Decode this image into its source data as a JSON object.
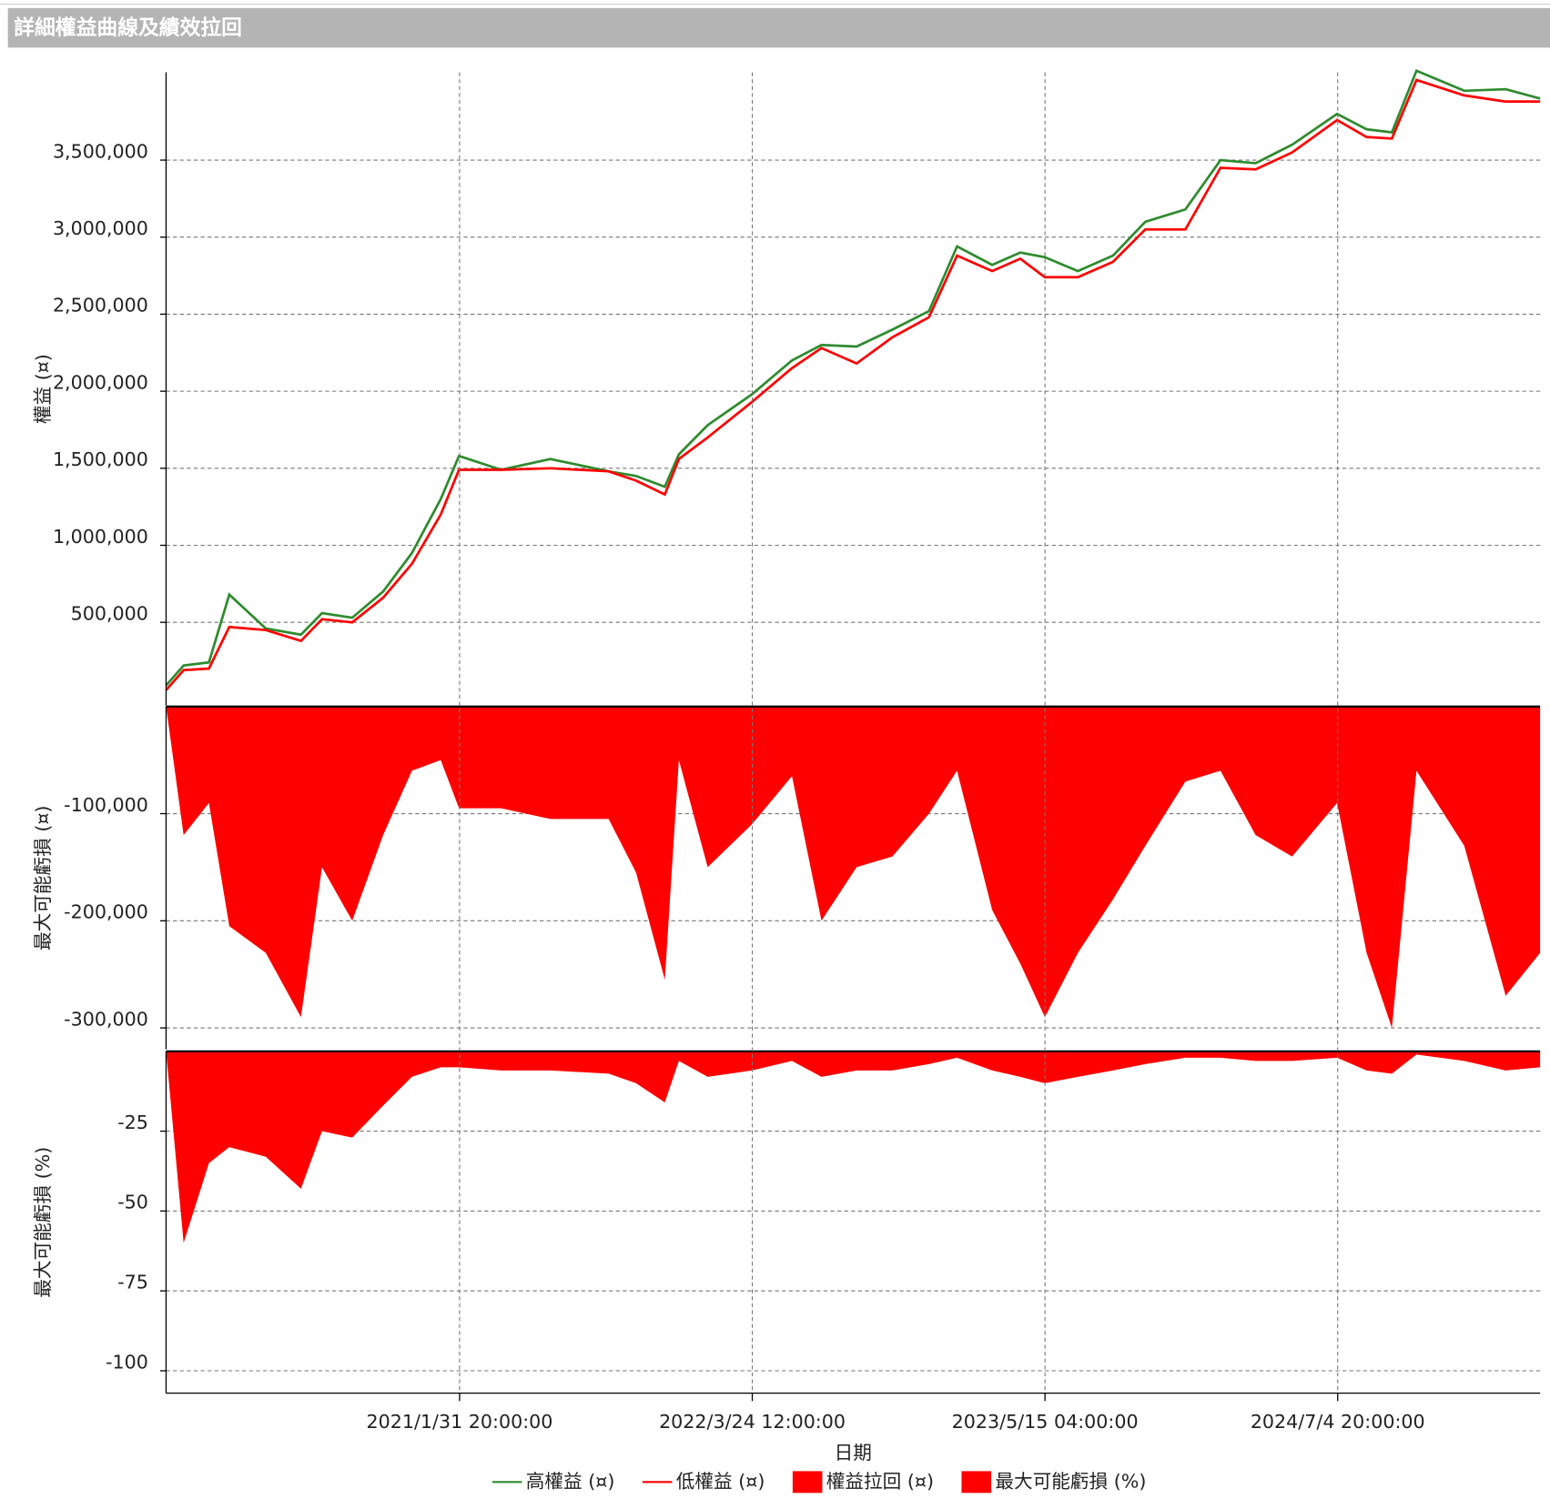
{
  "header": {
    "title": "詳細權益曲線及績效拉回"
  },
  "chart_data": [
    {
      "type": "line",
      "ylabel": "權益 (¤)",
      "xlim": [
        "2019/12/11",
        "2025/4/19"
      ],
      "x": [
        "2019/12/11",
        "2020/1/5",
        "2020/2/10",
        "2020/3/10",
        "2020/5/1",
        "2020/6/20",
        "2020/7/20",
        "2020/9/1",
        "2020/10/15",
        "2020/11/25",
        "2021/1/5",
        "2021/1/31",
        "2021/4/1",
        "2021/6/10",
        "2021/9/1",
        "2021/10/10",
        "2021/11/20",
        "2021/12/10",
        "2022/1/20",
        "2022/3/24",
        "2022/5/20",
        "2022/7/1",
        "2022/8/20",
        "2022/10/10",
        "2022/12/1",
        "2023/1/10",
        "2023/3/1",
        "2023/4/10",
        "2023/5/15",
        "2023/7/1",
        "2023/8/20",
        "2023/10/5",
        "2023/12/1",
        "2024/1/20",
        "2024/3/10",
        "2024/5/1",
        "2024/7/4",
        "2024/8/15",
        "2024/9/20",
        "2024/10/25",
        "2025/1/1",
        "2025/3/1",
        "2025/4/19"
      ],
      "series": [
        {
          "name": "高權益 (¤)",
          "color": "#2e8b2e",
          "values": [
            90000,
            220000,
            240000,
            680000,
            460000,
            420000,
            560000,
            530000,
            700000,
            950000,
            1300000,
            1580000,
            1490000,
            1560000,
            1480000,
            1450000,
            1380000,
            1590000,
            1780000,
            1980000,
            2200000,
            2300000,
            2290000,
            2400000,
            2520000,
            2940000,
            2820000,
            2900000,
            2870000,
            2780000,
            2880000,
            3100000,
            3180000,
            3500000,
            3480000,
            3600000,
            3800000,
            3700000,
            3680000,
            4080000,
            3950000,
            3960000,
            3900000
          ]
        },
        {
          "name": "低權益 (¤)",
          "color": "#ff0000",
          "values": [
            60000,
            190000,
            200000,
            470000,
            450000,
            380000,
            520000,
            500000,
            660000,
            880000,
            1200000,
            1490000,
            1490000,
            1500000,
            1480000,
            1420000,
            1330000,
            1560000,
            1700000,
            1930000,
            2150000,
            2280000,
            2180000,
            2350000,
            2480000,
            2880000,
            2780000,
            2860000,
            2740000,
            2740000,
            2840000,
            3050000,
            3050000,
            3450000,
            3440000,
            3550000,
            3760000,
            3650000,
            3640000,
            4020000,
            3920000,
            3880000,
            3880000
          ]
        }
      ],
      "ylim": [
        -40000,
        4070000
      ],
      "yticks": [
        {
          "value": 500000,
          "label": "500,000"
        },
        {
          "value": 1000000,
          "label": "1,000,000"
        },
        {
          "value": 1500000,
          "label": "1,500,000"
        },
        {
          "value": 2000000,
          "label": "2,000,000"
        },
        {
          "value": 2500000,
          "label": "2,500,000"
        },
        {
          "value": 3000000,
          "label": "3,000,000"
        },
        {
          "value": 3500000,
          "label": "3,500,000"
        }
      ],
      "grid": true
    },
    {
      "type": "area",
      "ylabel": "最大可能虧損 (¤)",
      "xlim": [
        "2019/12/11",
        "2025/4/19"
      ],
      "x": [
        "2019/12/11",
        "2020/1/5",
        "2020/2/10",
        "2020/3/10",
        "2020/5/1",
        "2020/6/20",
        "2020/7/20",
        "2020/9/1",
        "2020/10/15",
        "2020/11/25",
        "2021/1/5",
        "2021/1/31",
        "2021/4/1",
        "2021/6/10",
        "2021/9/1",
        "2021/10/10",
        "2021/11/20",
        "2021/12/10",
        "2022/1/20",
        "2022/3/24",
        "2022/5/20",
        "2022/7/1",
        "2022/8/20",
        "2022/10/10",
        "2022/12/1",
        "2023/1/10",
        "2023/3/1",
        "2023/4/10",
        "2023/5/15",
        "2023/7/1",
        "2023/8/20",
        "2023/10/5",
        "2023/12/1",
        "2024/1/20",
        "2024/3/10",
        "2024/5/1",
        "2024/7/4",
        "2024/8/15",
        "2024/9/20",
        "2024/10/25",
        "2025/1/1",
        "2025/3/1",
        "2025/4/19"
      ],
      "series": [
        {
          "name": "權益拉回 (¤)",
          "color": "#ff0000",
          "values": [
            0,
            -120000,
            -90000,
            -205000,
            -230000,
            -290000,
            -150000,
            -200000,
            -120000,
            -60000,
            -50000,
            -95000,
            -95000,
            -105000,
            -105000,
            -155000,
            -255000,
            -50000,
            -150000,
            -110000,
            -65000,
            -200000,
            -150000,
            -140000,
            -100000,
            -60000,
            -190000,
            -240000,
            -290000,
            -230000,
            -180000,
            -130000,
            -70000,
            -60000,
            -120000,
            -140000,
            -90000,
            -230000,
            -300000,
            -60000,
            -130000,
            -270000,
            -230000
          ]
        }
      ],
      "ylim": [
        -320000,
        0
      ],
      "yticks": [
        {
          "value": -300000,
          "label": "-300,000"
        },
        {
          "value": -200000,
          "label": "-200,000"
        },
        {
          "value": -100000,
          "label": "-100,000"
        }
      ],
      "grid": true
    },
    {
      "type": "area",
      "ylabel": "最大可能虧損 (%)",
      "xlabel": "日期",
      "xlim": [
        "2019/12/11",
        "2025/4/19"
      ],
      "x": [
        "2019/12/11",
        "2020/1/5",
        "2020/2/10",
        "2020/3/10",
        "2020/5/1",
        "2020/6/20",
        "2020/7/20",
        "2020/9/1",
        "2020/10/15",
        "2020/11/25",
        "2021/1/5",
        "2021/1/31",
        "2021/4/1",
        "2021/6/10",
        "2021/9/1",
        "2021/10/10",
        "2021/11/20",
        "2021/12/10",
        "2022/1/20",
        "2022/3/24",
        "2022/5/20",
        "2022/7/1",
        "2022/8/20",
        "2022/10/10",
        "2022/12/1",
        "2023/1/10",
        "2023/3/1",
        "2023/4/10",
        "2023/5/15",
        "2023/7/1",
        "2023/8/20",
        "2023/10/5",
        "2023/12/1",
        "2024/1/20",
        "2024/3/10",
        "2024/5/1",
        "2024/7/4",
        "2024/8/15",
        "2024/9/20",
        "2024/10/25",
        "2025/1/1",
        "2025/3/1",
        "2025/4/19"
      ],
      "series": [
        {
          "name": "最大可能虧損 (%)",
          "color": "#ff0000",
          "values": [
            0,
            -60,
            -35,
            -30,
            -33,
            -43,
            -25,
            -27,
            -17,
            -8,
            -5,
            -5,
            -6,
            -6,
            -7,
            -10,
            -16,
            -3,
            -8,
            -6,
            -3,
            -8,
            -6,
            -6,
            -4,
            -2,
            -6,
            -8,
            -10,
            -8,
            -6,
            -4,
            -2,
            -2,
            -3,
            -3,
            -2,
            -6,
            -7,
            -1,
            -3,
            -6,
            -5
          ]
        }
      ],
      "ylim": [
        -107,
        0
      ],
      "yticks": [
        -100,
        -75,
        -50,
        -25
      ],
      "xticks": [
        "2021/1/31 20:00:00",
        "2022/3/24 12:00:00",
        "2023/5/15 04:00:00",
        "2024/7/4 20:00:00"
      ],
      "grid": true
    }
  ]
}
